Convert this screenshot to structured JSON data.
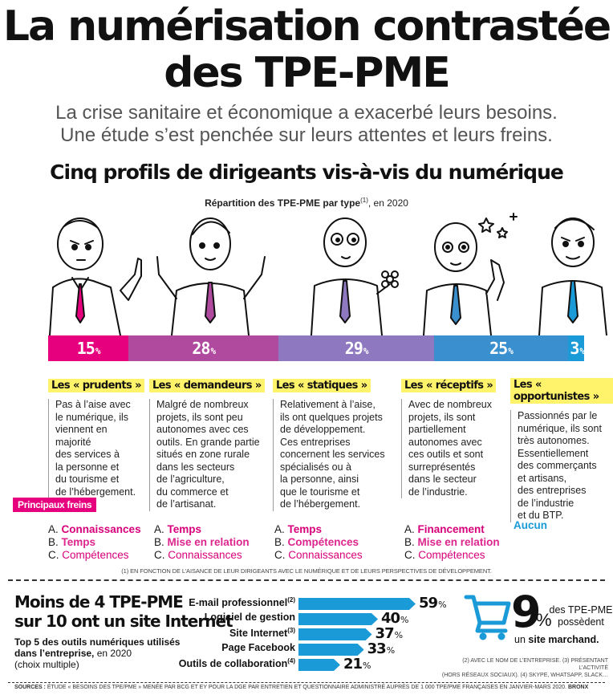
{
  "header": {
    "title_line1": "La numérisation contrastée",
    "title_line2": "des TPE-PME",
    "subtitle_line1": "La crise sanitaire et économique a exacerbé leurs besoins.",
    "subtitle_line2": "Une étude s’est penchée sur leurs attentes et leurs freins."
  },
  "section": {
    "title": "Cinq profils de dirigeants vis-à-vis du numérique",
    "sub_bold": "Répartition des TPE-PME par type",
    "sub_sup": "(1)",
    "sub_rest": ", en 2020"
  },
  "chart_data": [
    {
      "type": "bar",
      "title": "Cinq profils de dirigeants vis-à-vis du numérique",
      "subtitle": "Répartition des TPE-PME par type(1), en 2020",
      "categories": [
        "Les « prudents »",
        "Les « demandeurs »",
        "Les « statiques »",
        "Les « réceptifs »",
        "Les « opportunistes »"
      ],
      "values": [
        15,
        28,
        29,
        25,
        3
      ],
      "unit": "%",
      "colors": [
        "#e6007e",
        "#b04a9e",
        "#8e78bf",
        "#3a8fcf",
        "#1a9ad6"
      ]
    },
    {
      "type": "bar",
      "title": "Moins de 4 TPE-PME sur 10 ont un site Internet",
      "subtitle": "Top 5 des outils numériques utilisés dans l’entreprise, en 2020 (choix multiple)",
      "categories": [
        "E-mail professionnel(2)",
        "Logiciel de gestion",
        "Site Internet(3)",
        "Page Facebook",
        "Outils de collaboration(4)"
      ],
      "values": [
        59,
        40,
        37,
        33,
        21
      ],
      "unit": "%",
      "xlim": [
        0,
        59
      ]
    }
  ],
  "profiles": [
    {
      "tag": "Les « prudents »",
      "desc": [
        "Pas à l’aise avec",
        "le numérique, ils",
        "viennent en majorité",
        "des services à",
        "la personne et",
        "du tourisme et",
        "de l’hébergement."
      ],
      "brakes": [
        "Connaissances",
        "Temps",
        "Compétences"
      ]
    },
    {
      "tag": "Les « demandeurs »",
      "desc": [
        "Malgré de nombreux",
        "projets, ils sont peu",
        "autonomes avec ces",
        "outils. En grande partie",
        "situés en zone rurale",
        "dans les secteurs",
        "de l’agriculture,",
        "du commerce et",
        "de l’artisanat."
      ],
      "brakes": [
        "Temps",
        "Mise en relation",
        "Connaissances"
      ]
    },
    {
      "tag": "Les « statiques »",
      "desc": [
        "Relativement à l’aise,",
        "ils ont quelques projets",
        "de développement.",
        "Ces entreprises",
        "concernent les services",
        "spécialisés ou à",
        "la personne, ainsi",
        "que le tourisme et",
        "de l’hébergement."
      ],
      "brakes": [
        "Temps",
        "Compétences",
        "Connaissances"
      ]
    },
    {
      "tag": "Les « réceptifs »",
      "desc": [
        "Avec de nombreux",
        "projets, ils sont",
        "partiellement",
        "autonomes avec",
        "ces outils et sont",
        "surreprésentés",
        "dans le secteur",
        "de l’industrie."
      ],
      "brakes": [
        "Financement",
        "Mise en relation",
        "Compétences"
      ]
    },
    {
      "tag": "Les « opportunistes »",
      "desc": [
        "Passionnés par le",
        "numérique, ils sont",
        "très autonomes.",
        "Essentiellement",
        "des commerçants",
        "et artisans,",
        "des entreprises",
        "de l’industrie",
        "et du BTP."
      ],
      "brakes_none": "Aucun"
    }
  ],
  "letters": [
    "A.",
    "B.",
    "C."
  ],
  "freins_label": "Principaux freins",
  "footnote1": "(1) En fonction de l’aisance de leur dirigeants avec le numérique et de leurs perspectives de développement.",
  "bottom": {
    "title_line1": "Moins de 4 TPE-PME",
    "title_line2": "sur 10 ont un site Internet",
    "sub_line1": "Top 5 des outils numériques utilisés",
    "sub_line2_bold": "dans l’entreprise,",
    "sub_line2_rest": " en 2020",
    "sub_line3": "(choix multiple)",
    "pct_symbol": "%"
  },
  "stat": {
    "big": "9",
    "pct": "%",
    "line1": "des TPE-PME",
    "line2": "possèdent",
    "line3_pre": "un ",
    "line3_bold": "site marchand."
  },
  "footnote2_line1": "(2) Avec le nom de l’entreprise. (3) Présentant l’activité",
  "footnote2_line2": "(hors réseaux sociaux). (4) Skype, WhatsApp, Slack…",
  "sources_bold": "Sources :",
  "sources_text": " étude « Besoins des TPE/PME » menée par BCG et EY pour la DGE par entretien et questionnaire administré auprès de 1 000 TPE/PME françaises en janvier-mars 2020.",
  "credit": "BRONX",
  "colors": {
    "magenta": "#e6007e",
    "blue": "#1a9ad6",
    "highlight": "#fff36b"
  }
}
